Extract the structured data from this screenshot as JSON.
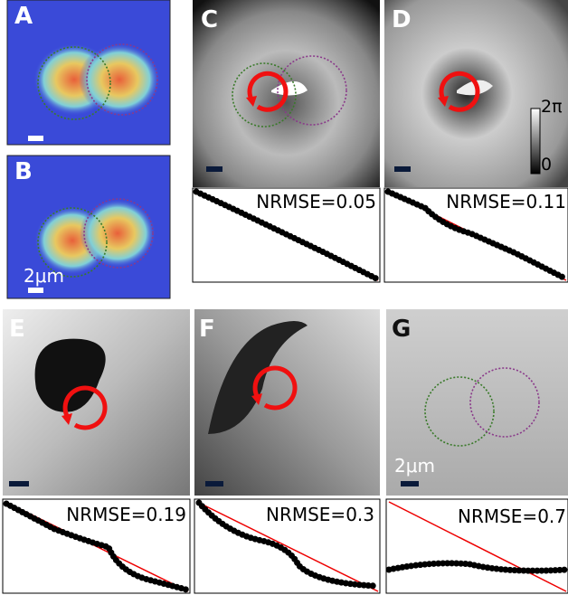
{
  "panels": [
    {
      "label": "A"
    },
    {
      "label": "B",
      "scale_label": "2μm"
    },
    {
      "label": "C",
      "nrmse": "NRMSE=0.05"
    },
    {
      "label": "D",
      "nrmse": "NRMSE=0.11",
      "colorbar": {
        "top": "2π",
        "bottom": "0"
      }
    },
    {
      "label": "E",
      "nrmse": "NRMSE=0.19"
    },
    {
      "label": "F",
      "nrmse": "NRMSE=0.3"
    },
    {
      "label": "G",
      "nrmse": "NRMSE=0.7",
      "scale_label": "2μm"
    }
  ]
}
